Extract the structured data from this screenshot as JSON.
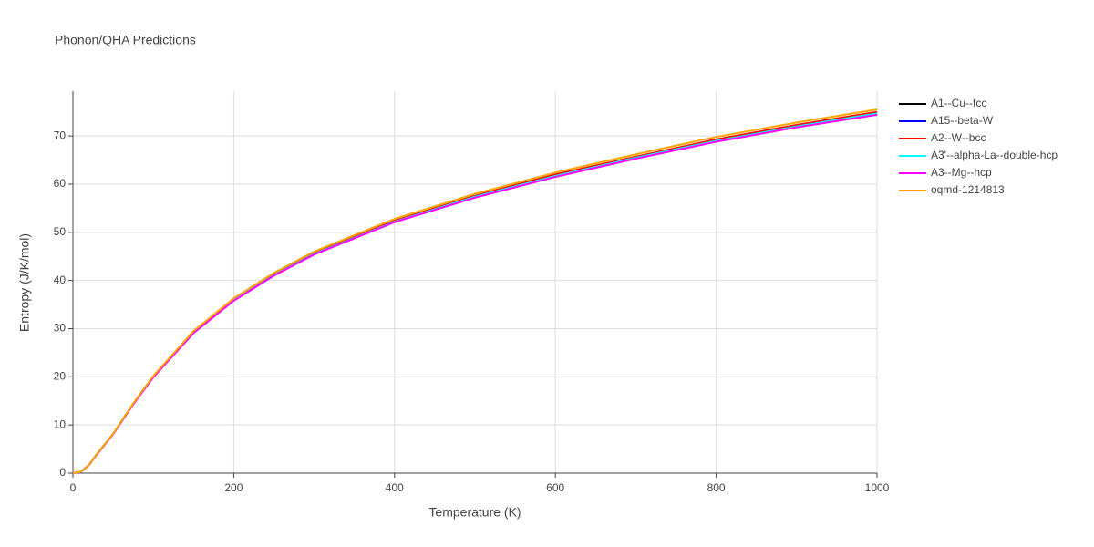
{
  "chart_data": {
    "type": "line",
    "title": "Phonon/QHA Predictions",
    "x_label": "Temperature (K)",
    "y_label": "Entropy (J/K/mol)",
    "x": [
      0,
      10,
      20,
      30,
      50,
      75,
      100,
      150,
      200,
      250,
      300,
      400,
      500,
      600,
      700,
      800,
      900,
      1000
    ],
    "xlim": [
      0,
      1000
    ],
    "ylim": [
      0,
      79.3
    ],
    "xticks": [
      0,
      200,
      400,
      600,
      800,
      1000
    ],
    "yticks": [
      0,
      10,
      20,
      30,
      40,
      50,
      60,
      70
    ],
    "grid": true,
    "legend": "right",
    "series": [
      {
        "name": "A1--Cu--fcc",
        "color": "#000000",
        "values": [
          0,
          0.3,
          1.7,
          4.0,
          8.1,
          14.4,
          20.0,
          29.2,
          36.0,
          41.2,
          45.6,
          52.3,
          57.5,
          61.8,
          65.6,
          69.2,
          72.1,
          74.8
        ]
      },
      {
        "name": "A15--beta-W",
        "color": "#0000ff",
        "values": [
          0,
          0.3,
          1.7,
          4.0,
          8.1,
          14.3,
          20.0,
          29.1,
          35.9,
          41.1,
          45.4,
          52.2,
          57.3,
          61.7,
          65.4,
          69.0,
          71.9,
          74.6
        ]
      },
      {
        "name": "A2--W--bcc",
        "color": "#ff0000",
        "values": [
          0,
          0.3,
          1.7,
          4.0,
          8.1,
          14.4,
          20.1,
          29.3,
          36.0,
          41.3,
          45.7,
          52.4,
          57.6,
          62.0,
          65.7,
          69.3,
          72.3,
          75.0
        ]
      },
      {
        "name": "A3'--alpha-La--double-hcp",
        "color": "#00ffff",
        "values": [
          0,
          0.3,
          1.7,
          4.0,
          8.1,
          14.3,
          20.0,
          29.2,
          35.9,
          41.1,
          45.5,
          52.2,
          57.4,
          61.7,
          65.5,
          69.0,
          72.0,
          74.7
        ]
      },
      {
        "name": "A3--Mg--hcp",
        "color": "#ff00ff",
        "values": [
          0,
          0.3,
          1.7,
          3.9,
          8.1,
          14.3,
          19.9,
          29.1,
          35.8,
          41.0,
          45.4,
          52.1,
          57.2,
          61.5,
          65.3,
          68.8,
          71.8,
          74.4
        ]
      },
      {
        "name": "oqmd-1214813",
        "color": "#ffa500",
        "values": [
          0,
          0.3,
          1.7,
          4.0,
          8.2,
          14.5,
          20.2,
          29.5,
          36.3,
          41.6,
          46.0,
          52.8,
          58.0,
          62.4,
          66.2,
          69.8,
          72.8,
          75.5
        ]
      }
    ]
  }
}
